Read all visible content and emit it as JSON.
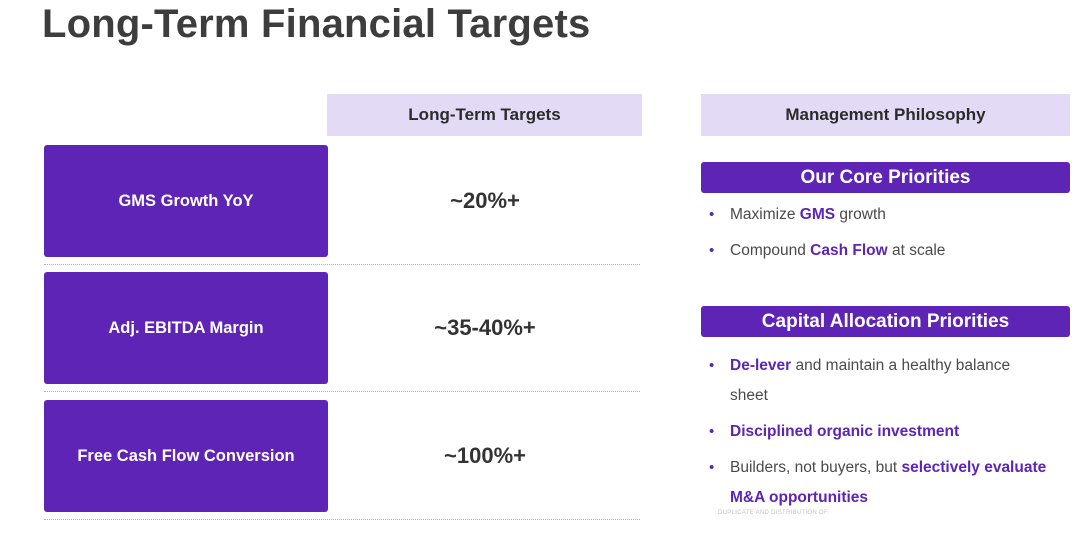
{
  "title": "Long-Term Financial Targets",
  "headers": {
    "targets": "Long-Term Targets",
    "philosophy": "Management Philosophy"
  },
  "metrics": [
    {
      "label": "GMS Growth YoY",
      "value": "~20%+"
    },
    {
      "label": "Adj. EBITDA Margin",
      "value": "~35-40%+"
    },
    {
      "label": "Free Cash Flow Conversion",
      "value": "~100%+"
    }
  ],
  "core_priorities": {
    "title": "Our Core Priorities",
    "bullets": [
      {
        "parts": [
          {
            "t": "Maximize "
          },
          {
            "t": "GMS",
            "hl": true
          },
          {
            "t": " growth"
          }
        ]
      },
      {
        "parts": [
          {
            "t": "Compound "
          },
          {
            "t": "Cash Flow",
            "hl": true
          },
          {
            "t": " at scale"
          }
        ]
      }
    ]
  },
  "capital_priorities": {
    "title": "Capital Allocation Priorities",
    "bullets": [
      {
        "parts": [
          {
            "t": "De-lever",
            "hl": true
          },
          {
            "t": " and maintain a healthy balance sheet"
          }
        ]
      },
      {
        "parts": [
          {
            "t": "Disciplined organic investment",
            "hl": true
          }
        ]
      },
      {
        "parts": [
          {
            "t": "Builders, not buyers, but "
          },
          {
            "t": "selectively evaluate M&A opportunities",
            "hl": true
          }
        ]
      }
    ]
  },
  "footnote": "DUPLICATE AND DISTRIBUTION OF",
  "colors": {
    "accent": "#5d24b6",
    "header_bg": "#e3dbf5"
  }
}
